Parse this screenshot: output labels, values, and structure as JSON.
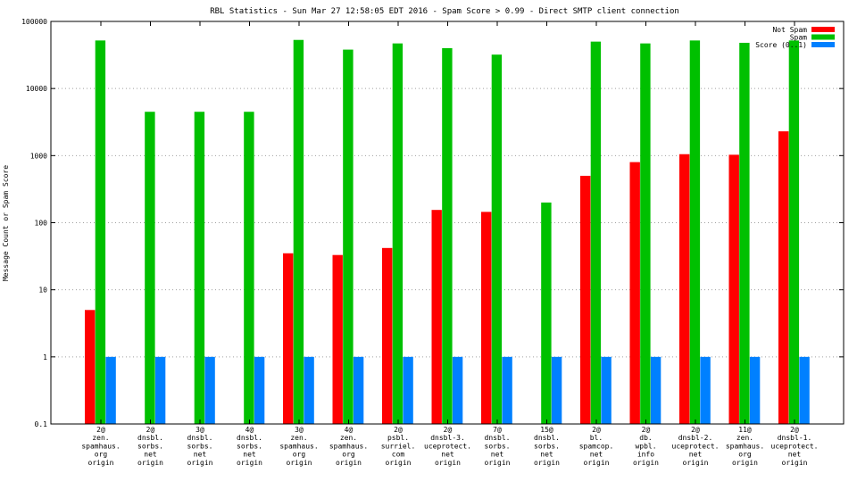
{
  "chart_data": {
    "type": "bar",
    "title": "RBL Statistics - Sun Mar 27 12:58:05 EDT 2016 - Spam Score > 0.99 - Direct SMTP client connection",
    "ylabel": "Message Count or Spam Score",
    "xlabel": "",
    "yscale": "log",
    "ylim": [
      0.1,
      100000
    ],
    "yticks": [
      "0.1",
      "1",
      "10",
      "100",
      "1000",
      "10000",
      "100000"
    ],
    "grid": true,
    "legend_position": "top-right",
    "categories": [
      [
        "2@",
        "zen.",
        "spamhaus.",
        "org",
        "origin"
      ],
      [
        "2@",
        "dnsbl.",
        "sorbs.",
        "net",
        "origin"
      ],
      [
        "3@",
        "dnsbl.",
        "sorbs.",
        "net",
        "origin"
      ],
      [
        "4@",
        "dnsbl.",
        "sorbs.",
        "net",
        "origin"
      ],
      [
        "3@",
        "zen.",
        "spamhaus.",
        "org",
        "origin"
      ],
      [
        "4@",
        "zen.",
        "spamhaus.",
        "org",
        "origin"
      ],
      [
        "2@",
        "psbl.",
        "surriel.",
        "com",
        "origin"
      ],
      [
        "2@",
        "dnsbl-3.",
        "uceprotect.",
        "net",
        "origin"
      ],
      [
        "7@",
        "dnsbl.",
        "sorbs.",
        "net",
        "origin"
      ],
      [
        "15@",
        "dnsbl.",
        "sorbs.",
        "net",
        "origin"
      ],
      [
        "2@",
        "bl.",
        "spamcop.",
        "net",
        "origin"
      ],
      [
        "2@",
        "db.",
        "wpbl.",
        "info",
        "origin"
      ],
      [
        "2@",
        "dnsbl-2.",
        "uceprotect.",
        "net",
        "origin"
      ],
      [
        "11@",
        "zen.",
        "spamhaus.",
        "org",
        "origin"
      ],
      [
        "2@",
        "dnsbl-1.",
        "uceprotect.",
        "net",
        "origin"
      ]
    ],
    "series": [
      {
        "name": "Not Spam",
        "color": "#ff0000",
        "values": [
          5,
          null,
          null,
          null,
          35,
          33,
          42,
          155,
          145,
          null,
          500,
          800,
          1050,
          1030,
          2300
        ]
      },
      {
        "name": "Spam",
        "color": "#00c000",
        "values": [
          52000,
          4500,
          4500,
          4500,
          53000,
          38000,
          47000,
          40000,
          32000,
          200,
          50000,
          47000,
          52000,
          48000,
          52000
        ]
      },
      {
        "name": "Score (0..1)",
        "color": "#0080ff",
        "values": [
          1,
          1,
          1,
          1,
          1,
          1,
          1,
          1,
          1,
          1,
          1,
          1,
          1,
          1,
          1
        ]
      }
    ]
  }
}
